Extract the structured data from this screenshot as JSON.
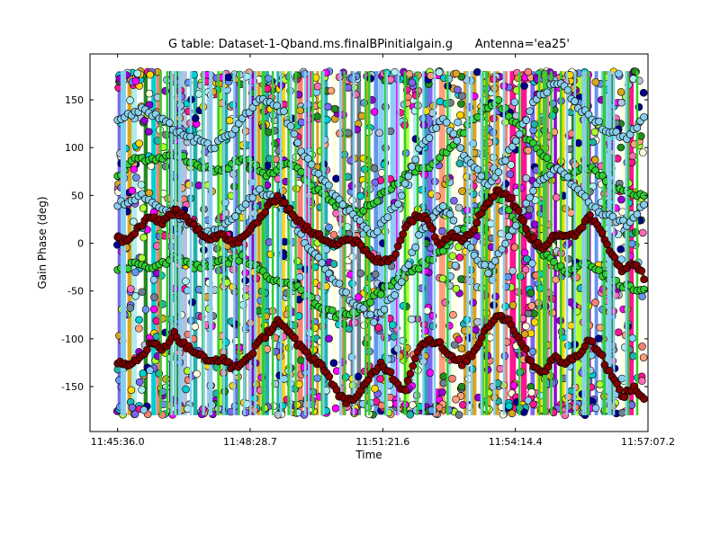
{
  "chart_data": {
    "type": "scatter",
    "title": "G table: Dataset-1-Qband.ms.finalBPinitialgain.g      Antenna='ea25'",
    "xlabel": "Time",
    "ylabel": "Gain Phase (deg)",
    "x_ticks": [
      "11:45:36.0",
      "11:48:28.7",
      "11:51:21.6",
      "11:54:14.4",
      "11:57:07.2"
    ],
    "x_tick_seconds": [
      42336.0,
      42508.7,
      42681.6,
      42854.4,
      43027.2
    ],
    "xlim": [
      "11:45:00.0",
      "11:57:07.2"
    ],
    "xlim_seconds": [
      42300.0,
      43027.2
    ],
    "y_ticks": [
      -150,
      -100,
      -50,
      0,
      50,
      100,
      150
    ],
    "ylim": [
      -197,
      198
    ],
    "grid": false,
    "legend": "none",
    "data_time_range_seconds": [
      42335.0,
      43022.0
    ],
    "series_colors": [
      "#ff69b4",
      "#9400d3",
      "#ffd700",
      "#00ced1",
      "#fa8072",
      "#ffffe0",
      "#7b68ee",
      "#b0c4de",
      "#20b2aa",
      "#adff2f",
      "#ff1493",
      "#87cefa",
      "#708090",
      "#daa520",
      "#228b22",
      "#ffa07a",
      "#00008b",
      "#afeeee",
      "#ff00ff",
      "#6495ed"
    ],
    "highlighted_series": [
      {
        "color": "#800000",
        "description": "dark red, two phase tracks",
        "track_upper": [
          [
            42336,
            5
          ],
          [
            42350,
            2
          ],
          [
            42365,
            18
          ],
          [
            42380,
            27
          ],
          [
            42395,
            22
          ],
          [
            42410,
            35
          ],
          [
            42425,
            25
          ],
          [
            42440,
            15
          ],
          [
            42455,
            5
          ],
          [
            42470,
            10
          ],
          [
            42485,
            0
          ],
          [
            42500,
            5
          ],
          [
            42515,
            20
          ],
          [
            42530,
            35
          ],
          [
            42545,
            50
          ],
          [
            42560,
            35
          ],
          [
            42575,
            20
          ],
          [
            42590,
            10
          ],
          [
            42605,
            5
          ],
          [
            42620,
            0
          ],
          [
            42635,
            5
          ],
          [
            42650,
            0
          ],
          [
            42665,
            -15
          ],
          [
            42680,
            -20
          ],
          [
            42695,
            -15
          ],
          [
            42710,
            15
          ],
          [
            42725,
            30
          ],
          [
            42740,
            25
          ],
          [
            42755,
            0
          ],
          [
            42770,
            10
          ],
          [
            42785,
            5
          ],
          [
            42800,
            15
          ],
          [
            42815,
            40
          ],
          [
            42830,
            55
          ],
          [
            42845,
            50
          ],
          [
            42860,
            30
          ],
          [
            42875,
            5
          ],
          [
            42890,
            -5
          ],
          [
            42905,
            10
          ],
          [
            42920,
            5
          ],
          [
            42935,
            10
          ],
          [
            42950,
            30
          ],
          [
            42965,
            15
          ],
          [
            42980,
            -10
          ],
          [
            42995,
            -30
          ],
          [
            43010,
            -20
          ],
          [
            43022,
            -35
          ]
        ],
        "track_lower": [
          [
            42336,
            -125
          ],
          [
            42350,
            -130
          ],
          [
            42365,
            -118
          ],
          [
            42380,
            -105
          ],
          [
            42395,
            -110
          ],
          [
            42410,
            -95
          ],
          [
            42425,
            -108
          ],
          [
            42440,
            -115
          ],
          [
            42455,
            -125
          ],
          [
            42470,
            -120
          ],
          [
            42485,
            -130
          ],
          [
            42500,
            -125
          ],
          [
            42515,
            -110
          ],
          [
            42530,
            -95
          ],
          [
            42545,
            -80
          ],
          [
            42560,
            -95
          ],
          [
            42575,
            -110
          ],
          [
            42590,
            -120
          ],
          [
            42605,
            -130
          ],
          [
            42620,
            -155
          ],
          [
            42635,
            -165
          ],
          [
            42650,
            -160
          ],
          [
            42665,
            -140
          ],
          [
            42680,
            -125
          ],
          [
            42695,
            -140
          ],
          [
            42710,
            -155
          ],
          [
            42725,
            -115
          ],
          [
            42740,
            -100
          ],
          [
            42755,
            -105
          ],
          [
            42770,
            -120
          ],
          [
            42785,
            -125
          ],
          [
            42800,
            -115
          ],
          [
            42815,
            -90
          ],
          [
            42830,
            -75
          ],
          [
            42845,
            -80
          ],
          [
            42860,
            -100
          ],
          [
            42875,
            -125
          ],
          [
            42890,
            -135
          ],
          [
            42905,
            -120
          ],
          [
            42920,
            -125
          ],
          [
            42935,
            -118
          ],
          [
            42950,
            -100
          ],
          [
            42965,
            -115
          ],
          [
            42980,
            -140
          ],
          [
            42995,
            -160
          ],
          [
            43010,
            -150
          ],
          [
            43022,
            -165
          ]
        ]
      },
      {
        "color": "#32cd32",
        "description": "bright green, two phase tracks",
        "track_upper": [
          [
            42336,
            70
          ],
          [
            42360,
            90
          ],
          [
            42385,
            85
          ],
          [
            42410,
            95
          ],
          [
            42440,
            80
          ],
          [
            42470,
            75
          ],
          [
            42500,
            90
          ],
          [
            42530,
            70
          ],
          [
            42560,
            85
          ],
          [
            42590,
            60
          ],
          [
            42620,
            40
          ],
          [
            42650,
            30
          ],
          [
            42680,
            50
          ],
          [
            42710,
            70
          ],
          [
            42740,
            80
          ],
          [
            42770,
            100
          ],
          [
            42800,
            130
          ],
          [
            42830,
            150
          ],
          [
            42860,
            120
          ],
          [
            42890,
            90
          ],
          [
            42920,
            70
          ],
          [
            42950,
            80
          ],
          [
            42980,
            60
          ],
          [
            43022,
            50
          ]
        ],
        "track_lower": [
          [
            42336,
            -30
          ],
          [
            42360,
            -20
          ],
          [
            42385,
            -25
          ],
          [
            42410,
            -15
          ],
          [
            42440,
            -25
          ],
          [
            42470,
            -20
          ],
          [
            42500,
            -15
          ],
          [
            42530,
            -35
          ],
          [
            42560,
            -40
          ],
          [
            42590,
            -60
          ],
          [
            42620,
            -75
          ],
          [
            42650,
            -70
          ],
          [
            42680,
            -50
          ],
          [
            42710,
            -30
          ],
          [
            42740,
            -20
          ],
          [
            42770,
            0
          ],
          [
            42800,
            30
          ],
          [
            42830,
            50
          ],
          [
            42860,
            20
          ],
          [
            42890,
            -10
          ],
          [
            42920,
            -30
          ],
          [
            42950,
            -20
          ],
          [
            42980,
            -40
          ],
          [
            43022,
            -50
          ]
        ]
      },
      {
        "color": "#87ceeb",
        "description": "light blue, two phase tracks",
        "track_upper": [
          [
            42336,
            130
          ],
          [
            42370,
            140
          ],
          [
            42400,
            125
          ],
          [
            42430,
            110
          ],
          [
            42460,
            100
          ],
          [
            42490,
            120
          ],
          [
            42520,
            150
          ],
          [
            42550,
            140
          ],
          [
            42580,
            90
          ],
          [
            42610,
            60
          ],
          [
            42640,
            30
          ],
          [
            42670,
            10
          ],
          [
            42700,
            40
          ],
          [
            42730,
            100
          ],
          [
            42760,
            130
          ],
          [
            42790,
            90
          ],
          [
            42820,
            60
          ],
          [
            42850,
            100
          ],
          [
            42880,
            150
          ],
          [
            42910,
            170
          ],
          [
            42940,
            140
          ],
          [
            42970,
            120
          ],
          [
            43000,
            110
          ],
          [
            43022,
            130
          ]
        ],
        "track_lower": [
          [
            42336,
            40
          ],
          [
            42370,
            50
          ],
          [
            42400,
            35
          ],
          [
            42430,
            20
          ],
          [
            42460,
            10
          ],
          [
            42490,
            30
          ],
          [
            42520,
            55
          ],
          [
            42550,
            45
          ],
          [
            42580,
            0
          ],
          [
            42610,
            -30
          ],
          [
            42640,
            -60
          ],
          [
            42670,
            -80
          ],
          [
            42700,
            -50
          ],
          [
            42730,
            10
          ],
          [
            42760,
            40
          ],
          [
            42790,
            0
          ],
          [
            42820,
            -30
          ],
          [
            42850,
            10
          ],
          [
            42880,
            60
          ],
          [
            42910,
            80
          ],
          [
            42940,
            50
          ],
          [
            42970,
            30
          ],
          [
            43000,
            20
          ],
          [
            43022,
            40
          ]
        ]
      }
    ]
  }
}
